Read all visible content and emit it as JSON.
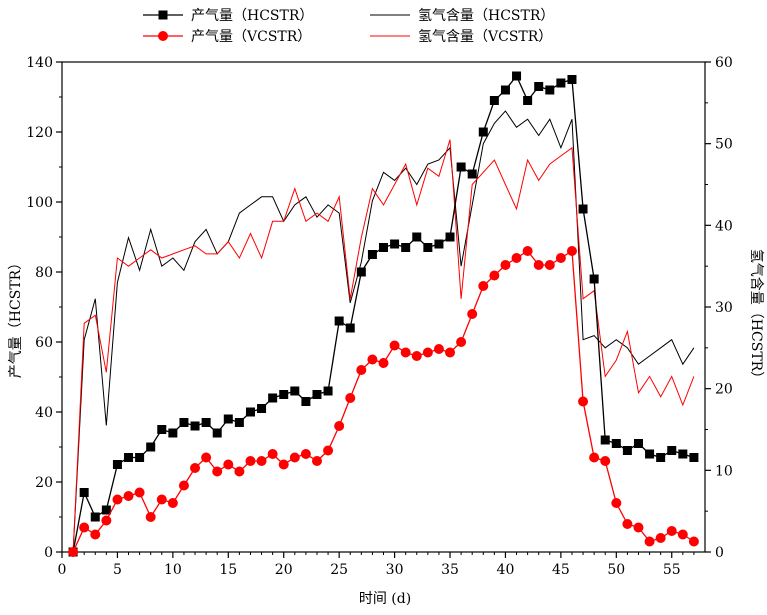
{
  "chart_data": {
    "type": "line",
    "xlabel": "时间 (d)",
    "ylabel_left": "产气量（HCSTR）",
    "ylabel_right": "氢气含量（HCSTR）",
    "xlim": [
      0,
      58
    ],
    "ylim_left": [
      0,
      140
    ],
    "ylim_right": [
      0,
      60
    ],
    "x_ticks": [
      0,
      5,
      10,
      15,
      20,
      25,
      30,
      35,
      40,
      45,
      50,
      55
    ],
    "y_left_ticks": [
      0,
      20,
      40,
      60,
      80,
      100,
      120,
      140
    ],
    "y_right_ticks": [
      0,
      10,
      20,
      30,
      40,
      50,
      60
    ],
    "grid": false,
    "legend_position": "top",
    "series": [
      {
        "name": "产气量（HCSTR）",
        "axis": "left",
        "color": "#000000",
        "marker": "square",
        "x": [
          1,
          2,
          3,
          4,
          5,
          6,
          7,
          8,
          9,
          10,
          11,
          12,
          13,
          14,
          15,
          16,
          17,
          18,
          19,
          20,
          21,
          22,
          23,
          24,
          25,
          26,
          27,
          28,
          29,
          30,
          31,
          32,
          33,
          34,
          35,
          36,
          37,
          38,
          39,
          40,
          41,
          42,
          43,
          44,
          45,
          46,
          47,
          48,
          49,
          50,
          51,
          52,
          53,
          54,
          55,
          56,
          57
        ],
        "values": [
          0,
          17,
          10,
          12,
          25,
          27,
          27,
          30,
          35,
          34,
          37,
          36,
          37,
          34,
          38,
          37,
          40,
          41,
          44,
          45,
          46,
          43,
          45,
          46,
          66,
          64,
          80,
          85,
          87,
          88,
          87,
          90,
          87,
          88,
          90,
          110,
          108,
          120,
          129,
          132,
          136,
          129,
          133,
          132,
          134,
          135,
          98,
          78,
          32,
          31,
          29,
          31,
          28,
          27,
          29,
          28,
          27
        ]
      },
      {
        "name": "产气量（VCSTR）",
        "axis": "left",
        "color": "#ff0000",
        "marker": "circle",
        "x": [
          1,
          2,
          3,
          4,
          5,
          6,
          7,
          8,
          9,
          10,
          11,
          12,
          13,
          14,
          15,
          16,
          17,
          18,
          19,
          20,
          21,
          22,
          23,
          24,
          25,
          26,
          27,
          28,
          29,
          30,
          31,
          32,
          33,
          34,
          35,
          36,
          37,
          38,
          39,
          40,
          41,
          42,
          43,
          44,
          45,
          46,
          47,
          48,
          49,
          50,
          51,
          52,
          53,
          54,
          55,
          56,
          57
        ],
        "values": [
          0,
          7,
          5,
          9,
          15,
          16,
          17,
          10,
          15,
          14,
          19,
          24,
          27,
          23,
          25,
          23,
          26,
          26,
          28,
          25,
          27,
          28,
          26,
          29,
          36,
          44,
          52,
          55,
          54,
          59,
          57,
          56,
          57,
          58,
          57,
          60,
          68,
          76,
          79,
          82,
          84,
          86,
          82,
          82,
          84,
          86,
          43,
          27,
          26,
          14,
          8,
          7,
          3,
          4,
          6,
          5,
          3
        ]
      },
      {
        "name": "氢气含量（HCSTR）",
        "axis": "right",
        "color": "#000000",
        "marker": "none",
        "x": [
          1,
          2,
          3,
          4,
          5,
          6,
          7,
          8,
          9,
          10,
          11,
          12,
          13,
          14,
          15,
          16,
          17,
          18,
          19,
          20,
          21,
          22,
          23,
          24,
          25,
          26,
          27,
          28,
          29,
          30,
          31,
          32,
          33,
          34,
          35,
          36,
          37,
          38,
          39,
          40,
          41,
          42,
          43,
          44,
          45,
          46,
          47,
          48,
          49,
          50,
          51,
          52,
          53,
          54,
          55,
          56,
          57
        ],
        "values": [
          0,
          26,
          31,
          15.5,
          33,
          38.5,
          34.5,
          39.5,
          35,
          36,
          34.5,
          38,
          39.5,
          36.5,
          38,
          41.5,
          42.5,
          43.5,
          43.5,
          40.5,
          42.5,
          43.5,
          41,
          42.5,
          41.5,
          30.5,
          35.5,
          43,
          46.5,
          45.5,
          47,
          45,
          47.5,
          48,
          49.5,
          35,
          42.5,
          50,
          52.5,
          54,
          52,
          53,
          51,
          53,
          49.5,
          53,
          26,
          26.5,
          25,
          26,
          25,
          23,
          24,
          25,
          26,
          23,
          25
        ]
      },
      {
        "name": "氢气含量（VCSTR）",
        "axis": "right",
        "color": "#ff0000",
        "marker": "none",
        "x": [
          1,
          2,
          3,
          4,
          5,
          6,
          7,
          8,
          9,
          10,
          11,
          12,
          13,
          14,
          15,
          16,
          17,
          18,
          19,
          20,
          21,
          22,
          23,
          24,
          25,
          26,
          27,
          28,
          29,
          30,
          31,
          32,
          33,
          34,
          35,
          36,
          37,
          38,
          39,
          40,
          41,
          42,
          43,
          44,
          45,
          46,
          47,
          48,
          49,
          50,
          51,
          52,
          53,
          54,
          55,
          56,
          57
        ],
        "values": [
          0,
          28,
          29,
          22,
          36,
          35,
          36,
          37,
          36,
          36.5,
          37,
          37.5,
          36.5,
          36.5,
          38,
          36,
          39,
          36,
          40.5,
          40.5,
          44.5,
          40.5,
          41.5,
          40.5,
          43.5,
          31,
          38.5,
          44.5,
          42.5,
          45,
          47.5,
          42.5,
          47,
          46,
          50.5,
          31,
          45,
          46.5,
          48,
          45,
          42,
          48,
          45.5,
          47.5,
          48.5,
          49.5,
          31,
          32,
          21.5,
          23.5,
          27,
          19.5,
          21.5,
          19,
          21.5,
          18,
          21.5
        ]
      }
    ]
  }
}
